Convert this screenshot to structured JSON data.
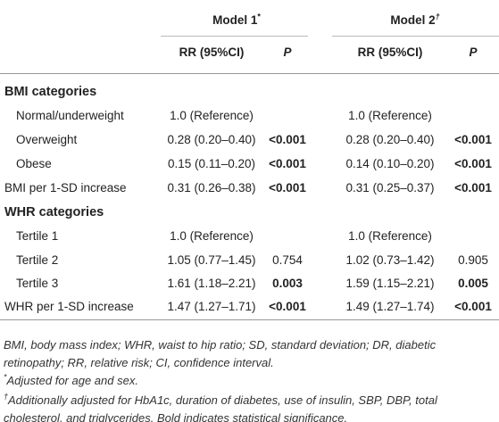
{
  "table": {
    "header": {
      "model1": {
        "text": "Model 1",
        "mark": "*"
      },
      "model2": {
        "text": "Model 2",
        "mark": "†"
      },
      "rr1": "RR (95%CI)",
      "p1": "P",
      "rr2": "RR (95%CI)",
      "p2": "P"
    },
    "rows": [
      {
        "section": "BMI categories"
      },
      {
        "label": "Normal/underweight",
        "indent": true,
        "rr1": "1.0 (Reference)",
        "rr2": "1.0 (Reference)"
      },
      {
        "label": "Overweight",
        "indent": true,
        "rr1": "0.28 (0.20–0.40)",
        "p1": "<0.001",
        "p1_bold": true,
        "rr2": "0.28 (0.20–0.40)",
        "p2": "<0.001",
        "p2_bold": true
      },
      {
        "label": "Obese",
        "indent": true,
        "rr1": "0.15 (0.11–0.20)",
        "p1": "<0.001",
        "p1_bold": true,
        "rr2": "0.14 (0.10–0.20)",
        "p2": "<0.001",
        "p2_bold": true
      },
      {
        "label": "BMI per 1-SD increase",
        "indent": false,
        "rr1": "0.31 (0.26–0.38)",
        "p1": "<0.001",
        "p1_bold": true,
        "rr2": "0.31 (0.25–0.37)",
        "p2": "<0.001",
        "p2_bold": true
      },
      {
        "section": "WHR categories"
      },
      {
        "label": "Tertile 1",
        "indent": true,
        "rr1": "1.0 (Reference)",
        "rr2": "1.0 (Reference)"
      },
      {
        "label": "Tertile 2",
        "indent": true,
        "rr1": "1.05 (0.77–1.45)",
        "p1": "0.754",
        "p1_bold": false,
        "rr2": "1.02 (0.73–1.42)",
        "p2": "0.905",
        "p2_bold": false
      },
      {
        "label": "Tertile 3",
        "indent": true,
        "rr1": "1.61 (1.18–2.21)",
        "p1": "0.003",
        "p1_bold": true,
        "rr2": "1.59 (1.15–2.21)",
        "p2": "0.005",
        "p2_bold": true
      },
      {
        "label": "WHR per 1-SD increase",
        "indent": false,
        "rr1": "1.47 (1.27–1.71)",
        "p1": "<0.001",
        "p1_bold": true,
        "rr2": "1.49 (1.27–1.74)",
        "p2": "<0.001",
        "p2_bold": true
      }
    ],
    "footnotes": [
      {
        "text": "BMI, body mass index; WHR, waist to hip ratio; SD, standard deviation; DR, diabetic retinopathy; RR, relative risk; CI, confidence interval."
      },
      {
        "mark": "*",
        "text": "Adjusted for age and sex."
      },
      {
        "mark": "†",
        "text": "Additionally adjusted for HbA1c, duration of diabetes, use of insulin, SBP, DBP, total cholesterol, and triglycerides. Bold indicates statistical significance."
      }
    ]
  }
}
